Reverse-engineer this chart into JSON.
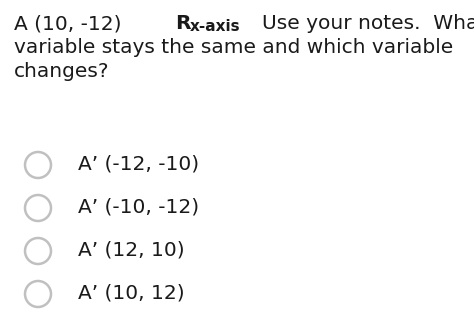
{
  "background_color": "#ffffff",
  "text_color": "#1a1a1a",
  "header_fontsize": 14.5,
  "option_fontsize": 14.5,
  "circle_color": "#c0c0c0",
  "line1_a": "A (10, -12)",
  "line1_r": "R",
  "line1_sub": "x-axis",
  "line1_rest": "   Use your notes.  What",
  "line2": "variable stays the same and which variable",
  "line3": "changes?",
  "options": [
    "A’ (-12, -10)",
    "A’ (-10, -12)",
    "A’ (12, 10)",
    "A’ (10, 12)"
  ],
  "fig_width": 4.74,
  "fig_height": 3.26,
  "dpi": 100
}
